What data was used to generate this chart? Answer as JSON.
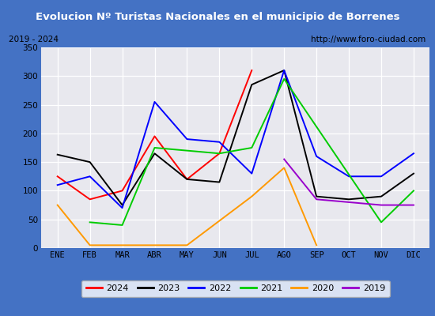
{
  "title": "Evolucion Nº Turistas Nacionales en el municipio de Borrenes",
  "subtitle_left": "2019 - 2024",
  "subtitle_right": "http://www.foro-ciudad.com",
  "months": [
    "ENE",
    "FEB",
    "MAR",
    "ABR",
    "MAY",
    "JUN",
    "JUL",
    "AGO",
    "SEP",
    "OCT",
    "NOV",
    "DIC"
  ],
  "series": {
    "2024": [
      125,
      85,
      100,
      195,
      120,
      165,
      310,
      null,
      null,
      null,
      null,
      null
    ],
    "2023": [
      163,
      150,
      75,
      165,
      120,
      115,
      285,
      310,
      90,
      85,
      90,
      130
    ],
    "2022": [
      110,
      125,
      70,
      255,
      190,
      185,
      130,
      310,
      160,
      125,
      125,
      165
    ],
    "2021": [
      null,
      45,
      40,
      175,
      170,
      165,
      175,
      295,
      null,
      null,
      45,
      100
    ],
    "2020": [
      75,
      5,
      null,
      null,
      5,
      null,
      90,
      140,
      5,
      null,
      null,
      null
    ],
    "2019": [
      null,
      null,
      null,
      null,
      null,
      null,
      null,
      155,
      85,
      80,
      75,
      75
    ]
  },
  "colors": {
    "2024": "#ff0000",
    "2023": "#000000",
    "2022": "#0000ff",
    "2021": "#00cc00",
    "2020": "#ff9900",
    "2019": "#9900cc"
  },
  "ylim": [
    0,
    350
  ],
  "yticks": [
    0,
    50,
    100,
    150,
    200,
    250,
    300,
    350
  ],
  "title_bg": "#4472c4",
  "title_color": "#ffffff",
  "plot_bg": "#e8e8ee",
  "grid_color": "#ffffff",
  "border_color": "#4472c4",
  "legend_years": [
    "2024",
    "2023",
    "2022",
    "2021",
    "2020",
    "2019"
  ]
}
